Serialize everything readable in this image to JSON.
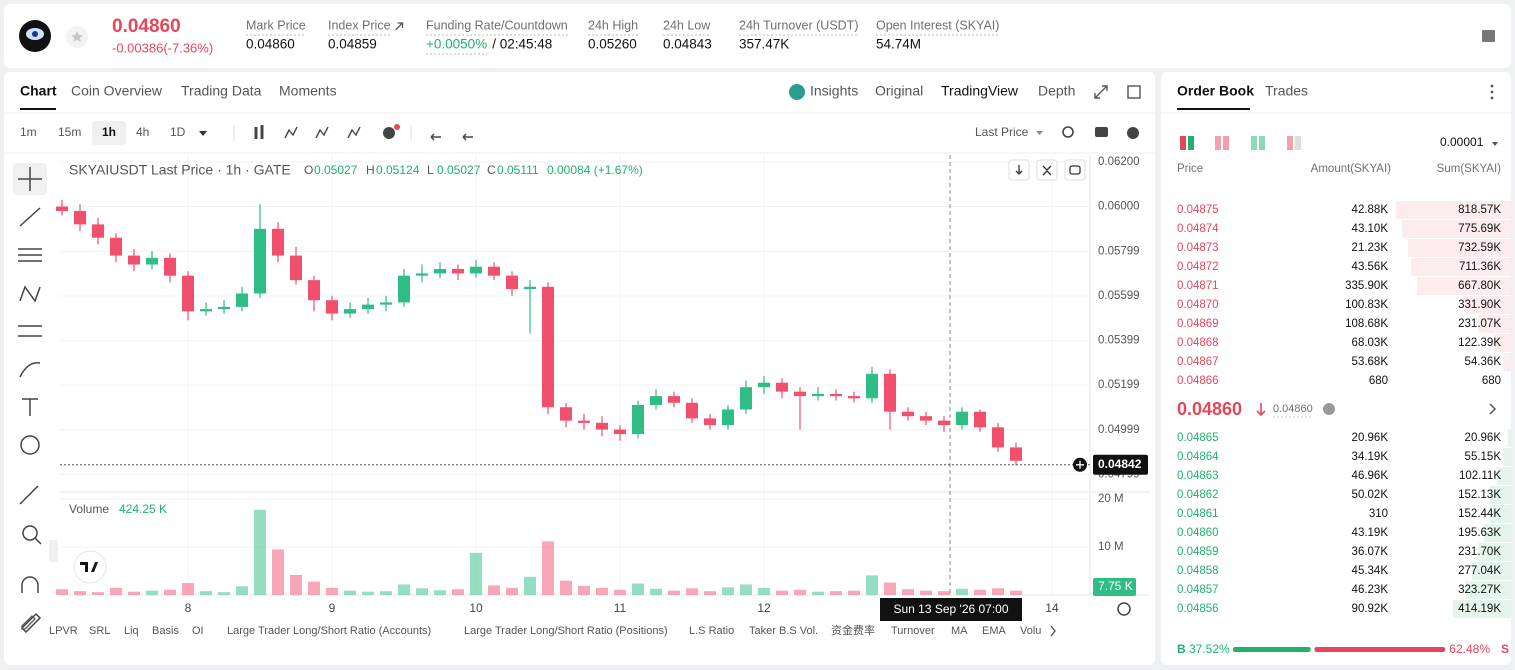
{
  "header": {
    "price": "0.04860",
    "change": "-0.00386(-7.36%)",
    "stats": [
      {
        "label": "Mark Price",
        "value": "0.04860"
      },
      {
        "label": "Index Price",
        "value": "0.04859"
      },
      {
        "label": "Funding Rate/Countdown",
        "value": "+0.0050%",
        "extra": "/ 02:45:48"
      },
      {
        "label": "24h High",
        "value": "0.05260"
      },
      {
        "label": "24h Low",
        "value": "0.04843"
      },
      {
        "label": "24h Turnover (USDT)",
        "value": "357.47K"
      },
      {
        "label": "Open Interest (SKYAI)",
        "value": "54.74M"
      }
    ]
  },
  "tabs": [
    "Chart",
    "Coin Overview",
    "Trading Data",
    "Moments"
  ],
  "views": [
    "Insights",
    "Original",
    "TradingView",
    "Depth"
  ],
  "intervals": [
    "1m",
    "15m",
    "1h",
    "4h",
    "1D"
  ],
  "price_source": "Last Price",
  "chart_data": {
    "type": "candlestick",
    "title": "SKYAIUSDT Last Price · 1h · GATE",
    "ohlc_legend": [
      {
        "key": "O",
        "value": "0.05027"
      },
      {
        "key": "H",
        "value": "0.05124"
      },
      {
        "key": "L",
        "value": "0.05027"
      },
      {
        "key": "C",
        "value": "0.05111"
      }
    ],
    "change": "0.00084 (+1.67%)",
    "up_color": "#2ebd85",
    "down_color": "#f0506e",
    "x": [
      7.125,
      7.25,
      7.375,
      7.5,
      7.625,
      7.75,
      7.875,
      8,
      8.125,
      8.25,
      8.375,
      8.5,
      8.625,
      8.75,
      8.875,
      9,
      9.125,
      9.25,
      9.375,
      9.5,
      9.625,
      9.75,
      9.875,
      10,
      10.125,
      10.25,
      10.375,
      10.5,
      10.625,
      10.75,
      10.875,
      11,
      11.125,
      11.25,
      11.375,
      11.5,
      11.625,
      11.75,
      11.875,
      12,
      12.125,
      12.25,
      12.375,
      12.5,
      12.625,
      12.75,
      12.875,
      13,
      13.125,
      13.25,
      13.375,
      13.5,
      13.625,
      13.75
    ],
    "open": [
      0.06,
      0.0598,
      0.0592,
      0.0586,
      0.0578,
      0.0574,
      0.0577,
      0.0569,
      0.0553,
      0.0554,
      0.0555,
      0.0561,
      0.059,
      0.0578,
      0.0567,
      0.0558,
      0.0552,
      0.0554,
      0.0556,
      0.0557,
      0.0569,
      0.057,
      0.0572,
      0.057,
      0.0573,
      0.0569,
      0.0563,
      0.0564,
      0.051,
      0.0504,
      0.0503,
      0.05,
      0.0498,
      0.0511,
      0.0515,
      0.0512,
      0.0505,
      0.0502,
      0.0509,
      0.0519,
      0.0521,
      0.0517,
      0.0515,
      0.0516,
      0.0515,
      0.0514,
      0.0525,
      0.0508,
      0.0506,
      0.0504,
      0.0502,
      0.0508,
      0.0501,
      0.0492
    ],
    "high": [
      0.0603,
      0.0601,
      0.0595,
      0.0588,
      0.0581,
      0.058,
      0.0579,
      0.0571,
      0.0557,
      0.0558,
      0.0564,
      0.0601,
      0.0593,
      0.0582,
      0.0569,
      0.056,
      0.0557,
      0.0559,
      0.056,
      0.0572,
      0.0574,
      0.0575,
      0.0574,
      0.0576,
      0.0575,
      0.0571,
      0.0567,
      0.0566,
      0.0512,
      0.0507,
      0.0506,
      0.0502,
      0.0513,
      0.0518,
      0.0517,
      0.0514,
      0.0507,
      0.0511,
      0.0522,
      0.0524,
      0.0523,
      0.0519,
      0.0519,
      0.0518,
      0.0517,
      0.0528,
      0.0527,
      0.051,
      0.0508,
      0.0506,
      0.051,
      0.0509,
      0.0503,
      0.0494
    ],
    "low": [
      0.0596,
      0.0589,
      0.0583,
      0.0575,
      0.0571,
      0.0572,
      0.0566,
      0.0549,
      0.0551,
      0.0552,
      0.0553,
      0.0559,
      0.0575,
      0.0565,
      0.0553,
      0.0549,
      0.055,
      0.0552,
      0.0553,
      0.0555,
      0.0566,
      0.0568,
      0.0567,
      0.0568,
      0.0567,
      0.056,
      0.0543,
      0.0507,
      0.0501,
      0.05,
      0.0497,
      0.0495,
      0.0496,
      0.0509,
      0.051,
      0.0503,
      0.05,
      0.05,
      0.0507,
      0.0516,
      0.0514,
      0.05,
      0.0513,
      0.0513,
      0.0512,
      0.0512,
      0.05,
      0.0504,
      0.0502,
      0.0499,
      0.05,
      0.0499,
      0.049,
      0.0484
    ],
    "close": [
      0.0598,
      0.0592,
      0.0586,
      0.0578,
      0.0574,
      0.0577,
      0.0569,
      0.0553,
      0.0554,
      0.0555,
      0.0561,
      0.059,
      0.0578,
      0.0567,
      0.0558,
      0.0552,
      0.0554,
      0.0556,
      0.0557,
      0.0569,
      0.057,
      0.0572,
      0.057,
      0.0573,
      0.0569,
      0.0563,
      0.0564,
      0.051,
      0.0504,
      0.0503,
      0.05,
      0.0498,
      0.0511,
      0.0515,
      0.0512,
      0.0505,
      0.0502,
      0.0509,
      0.0519,
      0.0521,
      0.0517,
      0.0515,
      0.0516,
      0.0515,
      0.0514,
      0.0525,
      0.0508,
      0.0506,
      0.0504,
      0.0502,
      0.0508,
      0.0501,
      0.0492,
      0.0486
    ],
    "xlim": [
      7.111,
      14.264
    ],
    "xticks": [
      8,
      9,
      10,
      11,
      12,
      14
    ],
    "ylim": [
      0.0472,
      0.06231
    ],
    "yticks": [
      {
        "value": 0.062,
        "label": "0.06200"
      },
      {
        "value": 0.06,
        "label": "0.06000"
      },
      0.05799,
      0.05599,
      0.05399,
      0.05199,
      0.04999,
      0.04799
    ],
    "grid": true,
    "last_price": 0.04842,
    "crosshair_label": "Sun 13 Sep '26  07:00",
    "volume": {
      "title": "Volume",
      "current": "424.25 K",
      "badge": "7.75 K",
      "values": [
        1200000,
        800000,
        600000,
        1500000,
        700000,
        900000,
        1100000,
        2500000,
        800000,
        600000,
        1800000,
        17800000,
        9500000,
        4200000,
        2800000,
        1500000,
        900000,
        700000,
        800000,
        2200000,
        1400000,
        1000000,
        1200000,
        8800000,
        2000000,
        1500000,
        3800000,
        11200000,
        3000000,
        1900000,
        1500000,
        1100000,
        2400000,
        1300000,
        900000,
        1400000,
        800000,
        1600000,
        2200000,
        1500000,
        900000,
        1100000,
        700000,
        800000,
        900000,
        4100000,
        2600000,
        1200000,
        900000,
        800000,
        1300000,
        1100000,
        1400000,
        900000
      ],
      "ylim": [
        0,
        21500000
      ],
      "yticks": [
        {
          "value": 20000000,
          "label": "20 M"
        },
        {
          "value": 10000000,
          "label": "10 M"
        }
      ]
    }
  },
  "indicators": [
    "LPVR",
    "SRL",
    "Liq",
    "Basis",
    "OI",
    "Large Trader Long/Short Ratio (Accounts)",
    "Large Trader Long/Short Ratio (Positions)",
    "L.S Ratio",
    "Taker B.S Vol.",
    "资金费率",
    "Turnover",
    "MA",
    "EMA",
    "Volu"
  ],
  "order_book": {
    "tabs": [
      "Order Book",
      "Trades"
    ],
    "precision": "0.00001",
    "columns": [
      "Price",
      "Amount(SKYAI)",
      "Sum(SKYAI)"
    ],
    "asks": [
      [
        "0.04875",
        "42.88K",
        "818.57K"
      ],
      [
        "0.04874",
        "43.10K",
        "775.69K"
      ],
      [
        "0.04873",
        "21.23K",
        "732.59K"
      ],
      [
        "0.04872",
        "43.56K",
        "711.36K"
      ],
      [
        "0.04871",
        "335.90K",
        "667.80K"
      ],
      [
        "0.04870",
        "100.83K",
        "331.90K"
      ],
      [
        "0.04869",
        "108.68K",
        "231.07K"
      ],
      [
        "0.04868",
        "68.03K",
        "122.39K"
      ],
      [
        "0.04867",
        "53.68K",
        "54.36K"
      ],
      [
        "0.04866",
        "680",
        "680"
      ]
    ],
    "mid_price": "0.04860",
    "mark_price": "0.04860",
    "bids": [
      [
        "0.04865",
        "20.96K",
        "20.96K"
      ],
      [
        "0.04864",
        "34.19K",
        "55.15K"
      ],
      [
        "0.04863",
        "46.96K",
        "102.11K"
      ],
      [
        "0.04862",
        "50.02K",
        "152.13K"
      ],
      [
        "0.04861",
        "310",
        "152.44K"
      ],
      [
        "0.04860",
        "43.19K",
        "195.63K"
      ],
      [
        "0.04859",
        "36.07K",
        "231.70K"
      ],
      [
        "0.04858",
        "45.34K",
        "277.04K"
      ],
      [
        "0.04857",
        "46.23K",
        "323.27K"
      ],
      [
        "0.04856",
        "90.92K",
        "414.19K"
      ]
    ],
    "ratio": {
      "buy_key": "B",
      "sell_key": "S",
      "buy": {
        "value": 37.52,
        "label": "37.52%"
      },
      "sell": {
        "value": 62.48,
        "label": "62.48%"
      }
    }
  }
}
